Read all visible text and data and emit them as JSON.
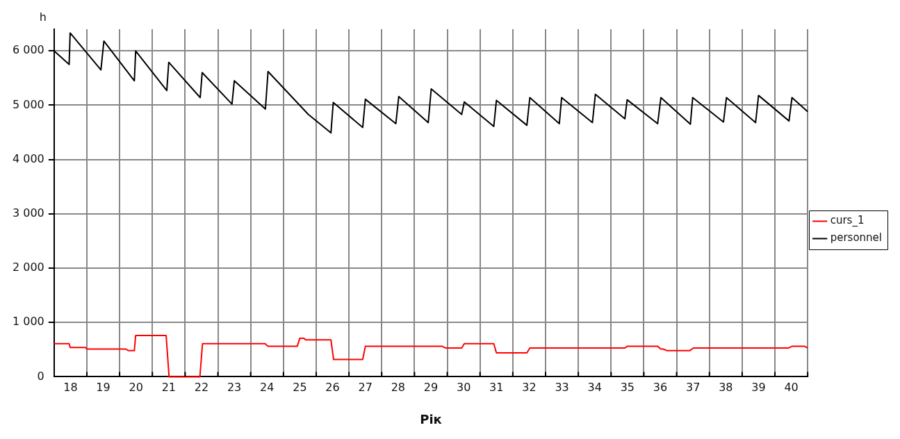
{
  "chart_data": {
    "type": "line",
    "xlabel": "Рік",
    "ylabel": "h",
    "legend": "right",
    "grid": true,
    "marker": "none",
    "line_style": "solid",
    "xlim": [
      17.5,
      40.5
    ],
    "ylim": [
      0,
      6400
    ],
    "xticks": [
      18,
      {
        "value": 18.5,
        "label": null
      },
      19,
      {
        "value": 19.5,
        "label": null
      },
      20,
      {
        "value": 20.5,
        "label": null
      },
      21,
      {
        "value": 21.5,
        "label": null
      },
      22,
      {
        "value": 22.5,
        "label": null
      },
      23,
      {
        "value": 23.5,
        "label": null
      },
      24,
      {
        "value": 24.5,
        "label": null
      },
      25,
      {
        "value": 25.5,
        "label": null
      },
      26,
      {
        "value": 26.5,
        "label": null
      },
      27,
      {
        "value": 27.5,
        "label": null
      },
      28,
      {
        "value": 28.5,
        "label": null
      },
      29,
      {
        "value": 29.5,
        "label": null
      },
      30,
      {
        "value": 30.5,
        "label": null
      },
      31,
      {
        "value": 31.5,
        "label": null
      },
      32,
      {
        "value": 32.5,
        "label": null
      },
      33,
      {
        "value": 33.5,
        "label": null
      },
      34,
      {
        "value": 34.5,
        "label": null
      },
      35,
      {
        "value": 35.5,
        "label": null
      },
      36,
      {
        "value": 36.5,
        "label": null
      },
      37,
      {
        "value": 37.5,
        "label": null
      },
      38,
      {
        "value": 38.5,
        "label": null
      },
      39,
      {
        "value": 39.5,
        "label": null
      },
      40,
      {
        "value": 40.5,
        "label": null
      }
    ],
    "yticks": [
      0,
      {
        "value": 1000,
        "label": "1 000"
      },
      {
        "value": 2000,
        "label": "2 000"
      },
      {
        "value": 3000,
        "label": "3 000"
      },
      {
        "value": 4000,
        "label": "4 000"
      },
      {
        "value": 5000,
        "label": "5 000"
      },
      {
        "value": 6000,
        "label": "6 000"
      }
    ],
    "series": [
      {
        "name": "curs_1",
        "color": "#ff0000",
        "x": [
          17.5,
          17.96,
          17.99,
          18.46,
          18.51,
          19.69,
          19.77,
          19.95,
          19.99,
          20.92,
          21.01,
          21.95,
          22.03,
          23.94,
          24.03,
          24.92,
          25.0,
          25.12,
          25.18,
          25.95,
          26.03,
          26.92,
          27.0,
          29.35,
          29.44,
          29.94,
          30.02,
          30.92,
          31.0,
          31.93,
          32.02,
          34.92,
          34.99,
          35.92,
          36.02,
          36.09,
          36.21,
          36.9,
          37.01,
          39.92,
          40.02,
          40.41,
          40.5
        ],
        "values": [
          610,
          610,
          540,
          540,
          510,
          510,
          480,
          480,
          760,
          760,
          0,
          0,
          610,
          610,
          560,
          560,
          710,
          710,
          680,
          680,
          320,
          320,
          560,
          560,
          530,
          530,
          610,
          610,
          440,
          440,
          530,
          530,
          560,
          560,
          510,
          510,
          480,
          480,
          530,
          530,
          560,
          560,
          530
        ]
      },
      {
        "name": "personnel",
        "color": "#000000",
        "x": [
          17.5,
          17.96,
          17.99,
          18.93,
          19.02,
          19.95,
          19.99,
          20.94,
          21.0,
          21.96,
          22.02,
          22.93,
          23.0,
          23.95,
          24.03,
          25.26,
          25.71,
          25.95,
          26.02,
          26.92,
          27.0,
          27.93,
          28.02,
          28.92,
          29.01,
          29.94,
          30.02,
          30.92,
          31.0,
          31.93,
          32.02,
          32.92,
          32.99,
          33.93,
          34.02,
          34.92,
          34.99,
          35.92,
          36.02,
          36.92,
          36.99,
          37.93,
          38.02,
          38.91,
          39.0,
          39.93,
          40.02,
          40.5
        ],
        "values": [
          6000,
          5750,
          6330,
          5650,
          6180,
          5450,
          6000,
          5270,
          5790,
          5140,
          5600,
          5020,
          5450,
          4930,
          5620,
          4830,
          4610,
          4490,
          5050,
          4590,
          5110,
          4660,
          5160,
          4680,
          5300,
          4830,
          5060,
          4610,
          5090,
          4630,
          5140,
          4660,
          5140,
          4680,
          5200,
          4750,
          5100,
          4660,
          5140,
          4650,
          5140,
          4690,
          5140,
          4680,
          5180,
          4710,
          5140,
          4880
        ]
      }
    ]
  }
}
